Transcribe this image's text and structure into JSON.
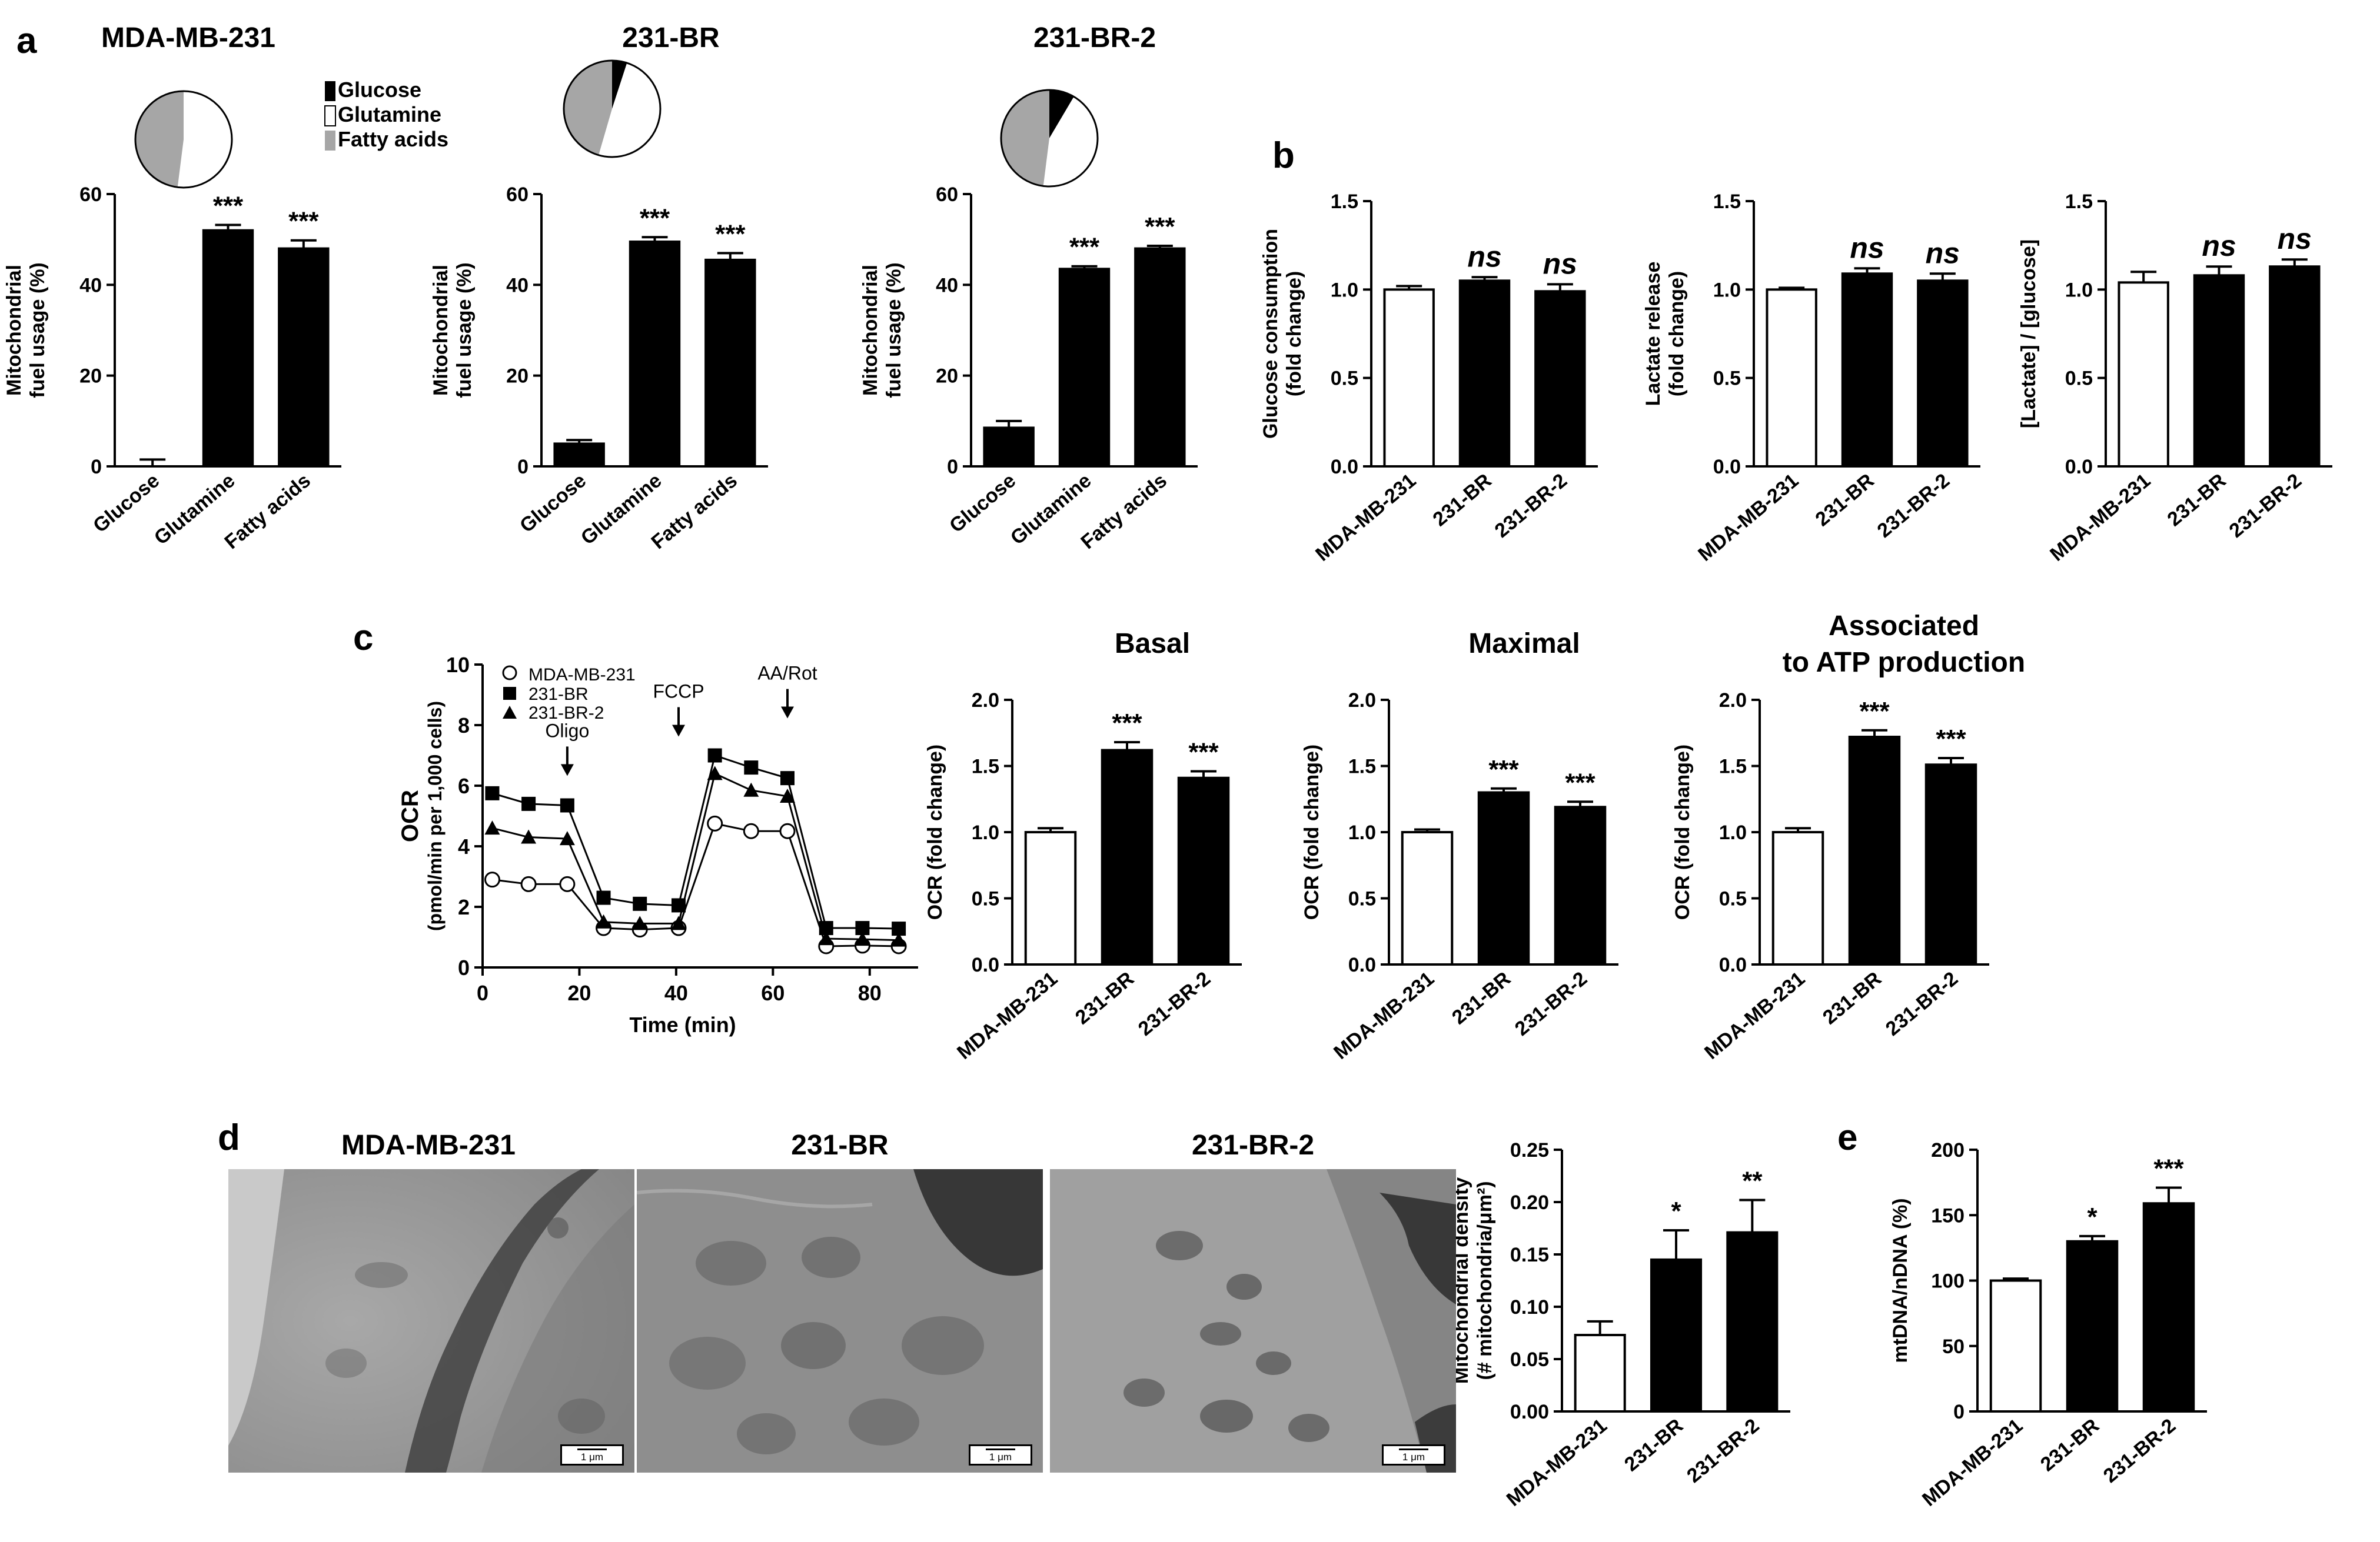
{
  "panel_letters": [
    "a",
    "b",
    "c",
    "d",
    "e"
  ],
  "legends": {
    "pie": [
      {
        "label": "Glucose",
        "color": "#000000"
      },
      {
        "label": "Glutamine",
        "color": "#ffffff"
      },
      {
        "label": "Fatty acids",
        "color": "#a6a6a6"
      }
    ],
    "ocr": [
      {
        "label": "MDA-MB-231",
        "marker": "open-circle"
      },
      {
        "label": "231-BR",
        "marker": "filled-square"
      },
      {
        "label": "231-BR-2",
        "marker": "filled-triangle"
      }
    ]
  },
  "micrographs": {
    "titles": [
      "MDA-MB-231",
      "231-BR",
      "231-BR-2"
    ],
    "scale_label": "1 μm"
  },
  "chart_data": [
    {
      "id": "a1",
      "type": "bar",
      "title": "MDA-MB-231",
      "ylabel": [
        "Mitochondrial",
        "fuel usage (%)"
      ],
      "categories": [
        "Glucose",
        "Glutamine",
        "Fatty acids"
      ],
      "values": [
        0,
        52,
        48
      ],
      "errors": [
        1.5,
        1.2,
        1.8
      ],
      "fills": [
        "white",
        "black",
        "black"
      ],
      "ylim": [
        0,
        60
      ],
      "yticks": [
        "0",
        "20",
        "40",
        "60"
      ],
      "significance": [
        "",
        "***",
        "***"
      ],
      "pie": {
        "Glucose": 0,
        "Glutamine": 52,
        "Fatty acids": 48
      }
    },
    {
      "id": "a2",
      "type": "bar",
      "title": "231-BR",
      "ylabel": [
        "Mitochondrial",
        "fuel usage (%)"
      ],
      "categories": [
        "Glucose",
        "Glutamine",
        "Fatty acids"
      ],
      "values": [
        5,
        49.5,
        45.5
      ],
      "errors": [
        0.8,
        1.0,
        1.5
      ],
      "fills": [
        "black",
        "black",
        "black"
      ],
      "ylim": [
        0,
        60
      ],
      "yticks": [
        "0",
        "20",
        "40",
        "60"
      ],
      "significance": [
        "",
        "***",
        "***"
      ],
      "pie": {
        "Glucose": 5,
        "Glutamine": 49.5,
        "Fatty acids": 45.5
      }
    },
    {
      "id": "a3",
      "type": "bar",
      "title": "231-BR-2",
      "ylabel": [
        "Mitochondrial",
        "fuel usage (%)"
      ],
      "categories": [
        "Glucose",
        "Glutamine",
        "Fatty acids"
      ],
      "values": [
        8.5,
        43.5,
        48
      ],
      "errors": [
        1.5,
        0.6,
        0.6
      ],
      "fills": [
        "black",
        "black",
        "black"
      ],
      "ylim": [
        0,
        60
      ],
      "yticks": [
        "0",
        "20",
        "40",
        "60"
      ],
      "significance": [
        "",
        "***",
        "***"
      ],
      "pie": {
        "Glucose": 8.5,
        "Glutamine": 43.5,
        "Fatty acids": 48
      }
    },
    {
      "id": "b1",
      "type": "bar",
      "title": "",
      "ylabel": [
        "Glucose consumption",
        "(fold change)"
      ],
      "categories": [
        "MDA-MB-231",
        "231-BR",
        "231-BR-2"
      ],
      "values": [
        1.0,
        1.05,
        0.99
      ],
      "errors": [
        0.02,
        0.02,
        0.04
      ],
      "fills": [
        "white",
        "black",
        "black"
      ],
      "ylim": [
        0,
        1.5
      ],
      "yticks": [
        "0.0",
        "0.5",
        "1.0",
        "1.5"
      ],
      "significance": [
        "",
        "ns",
        "ns"
      ]
    },
    {
      "id": "b2",
      "type": "bar",
      "title": "",
      "ylabel": [
        "Lactate release",
        "(fold change)"
      ],
      "categories": [
        "MDA-MB-231",
        "231-BR",
        "231-BR-2"
      ],
      "values": [
        1.0,
        1.09,
        1.05
      ],
      "errors": [
        0.01,
        0.03,
        0.04
      ],
      "fills": [
        "white",
        "black",
        "black"
      ],
      "ylim": [
        0,
        1.5
      ],
      "yticks": [
        "0.0",
        "0.5",
        "1.0",
        "1.5"
      ],
      "significance": [
        "",
        "ns",
        "ns"
      ]
    },
    {
      "id": "b3",
      "type": "bar",
      "title": "",
      "ylabel": [
        "[Lactate] / [glucose]"
      ],
      "categories": [
        "MDA-MB-231",
        "231-BR",
        "231-BR-2"
      ],
      "values": [
        1.04,
        1.08,
        1.13
      ],
      "errors": [
        0.06,
        0.05,
        0.04
      ],
      "fills": [
        "white",
        "black",
        "black"
      ],
      "ylim": [
        0,
        1.5
      ],
      "yticks": [
        "0.0",
        "0.5",
        "1.0",
        "1.5"
      ],
      "significance": [
        "",
        "ns",
        "ns"
      ]
    },
    {
      "id": "c1",
      "type": "line",
      "title": "",
      "ylabel": [
        "OCR",
        "(pmol/min per 1,000 cells)"
      ],
      "xlabel": "Time (min)",
      "xlim": [
        0,
        90
      ],
      "ylim": [
        0,
        10
      ],
      "xticks": [
        "0",
        "20",
        "40",
        "60",
        "80"
      ],
      "yticks": [
        "0",
        "2",
        "4",
        "6",
        "8",
        "10"
      ],
      "x": [
        2,
        9.5,
        17.5,
        25,
        32.5,
        40.5,
        48,
        55.5,
        63,
        71,
        78.5,
        86
      ],
      "series": [
        {
          "name": "MDA-MB-231",
          "marker": "open-circle",
          "values": [
            2.9,
            2.75,
            2.75,
            1.3,
            1.25,
            1.3,
            4.75,
            4.5,
            4.5,
            0.7,
            0.72,
            0.7
          ]
        },
        {
          "name": "231-BR",
          "marker": "filled-square",
          "values": [
            5.75,
            5.4,
            5.35,
            2.3,
            2.1,
            2.05,
            7.0,
            6.6,
            6.25,
            1.3,
            1.3,
            1.28
          ]
        },
        {
          "name": "231-BR-2",
          "marker": "filled-triangle",
          "values": [
            4.6,
            4.3,
            4.25,
            1.5,
            1.45,
            1.45,
            6.4,
            5.85,
            5.65,
            0.95,
            0.93,
            0.9
          ]
        }
      ],
      "annotations": [
        {
          "label": "Oligo",
          "x": 17.5,
          "y": 6.4
        },
        {
          "label": "FCCP",
          "x": 40.5,
          "y": 7.7
        },
        {
          "label": "AA/Rot",
          "x": 63,
          "y": 8.3
        }
      ]
    },
    {
      "id": "c2",
      "type": "bar",
      "title": "Basal",
      "ylabel": [
        "OCR (fold change)"
      ],
      "categories": [
        "MDA-MB-231",
        "231-BR",
        "231-BR-2"
      ],
      "values": [
        1.0,
        1.62,
        1.41
      ],
      "errors": [
        0.03,
        0.06,
        0.05
      ],
      "fills": [
        "white",
        "black",
        "black"
      ],
      "ylim": [
        0,
        2.0
      ],
      "yticks": [
        "0.0",
        "0.5",
        "1.0",
        "1.5",
        "2.0"
      ],
      "significance": [
        "",
        "***",
        "***"
      ]
    },
    {
      "id": "c3",
      "type": "bar",
      "title": "Maximal",
      "ylabel": [
        "OCR (fold change)"
      ],
      "categories": [
        "MDA-MB-231",
        "231-BR",
        "231-BR-2"
      ],
      "values": [
        1.0,
        1.3,
        1.19
      ],
      "errors": [
        0.02,
        0.03,
        0.04
      ],
      "fills": [
        "white",
        "black",
        "black"
      ],
      "ylim": [
        0,
        2.0
      ],
      "yticks": [
        "0.0",
        "0.5",
        "1.0",
        "1.5",
        "2.0"
      ],
      "significance": [
        "",
        "***",
        "***"
      ]
    },
    {
      "id": "c4",
      "type": "bar",
      "title": "Associated\nto ATP production",
      "ylabel": [
        "OCR (fold change)"
      ],
      "categories": [
        "MDA-MB-231",
        "231-BR",
        "231-BR-2"
      ],
      "values": [
        1.0,
        1.72,
        1.51
      ],
      "errors": [
        0.03,
        0.05,
        0.05
      ],
      "fills": [
        "white",
        "black",
        "black"
      ],
      "ylim": [
        0,
        2.0
      ],
      "yticks": [
        "0.0",
        "0.5",
        "1.0",
        "1.5",
        "2.0"
      ],
      "significance": [
        "",
        "***",
        "***"
      ]
    },
    {
      "id": "d1",
      "type": "bar",
      "title": "",
      "ylabel": [
        "Mitochondrial density",
        "(# mitochondria/μm²)"
      ],
      "categories": [
        "MDA-MB-231",
        "231-BR",
        "231-BR-2"
      ],
      "values": [
        0.073,
        0.145,
        0.171
      ],
      "errors": [
        0.013,
        0.028,
        0.031
      ],
      "fills": [
        "white",
        "black",
        "black"
      ],
      "ylim": [
        0,
        0.25
      ],
      "yticks": [
        "0.00",
        "0.05",
        "0.10",
        "0.15",
        "0.20",
        "0.25"
      ],
      "significance": [
        "",
        "*",
        "**"
      ]
    },
    {
      "id": "e1",
      "type": "bar",
      "title": "",
      "ylabel": [
        "mtDNA/nDNA (%)"
      ],
      "categories": [
        "MDA-MB-231",
        "231-BR",
        "231-BR-2"
      ],
      "values": [
        100,
        130,
        159
      ],
      "errors": [
        1.5,
        4,
        12
      ],
      "fills": [
        "white",
        "black",
        "black"
      ],
      "ylim": [
        0,
        200
      ],
      "yticks": [
        "0",
        "50",
        "100",
        "150",
        "200"
      ],
      "significance": [
        "",
        "*",
        "***"
      ]
    }
  ]
}
